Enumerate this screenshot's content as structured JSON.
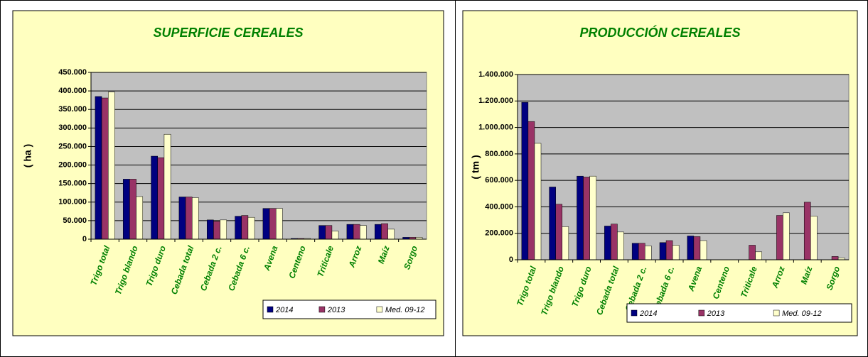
{
  "chart_data": [
    {
      "type": "bar",
      "title": "SUPERFICIE CEREALES",
      "ylabel": "( ha )",
      "categories": [
        "Trigo total",
        "Trigo blando",
        "Trigo duro",
        "Cebada total",
        "Cebada 2 c.",
        "Cebada 6 c.",
        "Avena",
        "Centeno",
        "Triticale",
        "Arroz",
        "Maíz",
        "Sorgo"
      ],
      "series": [
        {
          "name": "2014",
          "color": "#000080",
          "values": [
            385000,
            162000,
            224000,
            114000,
            52000,
            62000,
            83000,
            2000,
            37000,
            40000,
            40000,
            5000
          ]
        },
        {
          "name": "2013",
          "color": "#993366",
          "values": [
            381000,
            162000,
            220000,
            114000,
            48000,
            64000,
            83000,
            2000,
            37000,
            40000,
            42000,
            5000
          ]
        },
        {
          "name": "Med. 09-12",
          "color": "#ffffcc",
          "values": [
            397000,
            115000,
            283000,
            112000,
            52000,
            59000,
            83000,
            2000,
            22000,
            37000,
            27000,
            5000
          ]
        }
      ],
      "ylim": [
        0,
        450000
      ],
      "yticks": [
        0,
        {
          "value": 50000,
          "label": "50.000"
        },
        {
          "value": 100000,
          "label": "100.000"
        },
        {
          "value": 150000,
          "label": "150.000"
        },
        {
          "value": 200000,
          "label": "200.000"
        },
        {
          "value": 250000,
          "label": "250.000"
        },
        {
          "value": 300000,
          "label": "300.000"
        },
        {
          "value": 350000,
          "label": "350.000"
        },
        {
          "value": 400000,
          "label": "400.000"
        },
        {
          "value": 450000,
          "label": "450.000"
        }
      ],
      "grid": true,
      "legend": "bottom-right"
    },
    {
      "type": "bar",
      "title": "PRODUCCIÓN CEREALES",
      "ylabel": "( tm )",
      "categories": [
        "Trigo total",
        "Trigo blando",
        "Trigo duro",
        "Cebada total",
        "Cebada 2 c.",
        "Cebada 6 c.",
        "Avena",
        "Centeno",
        "Triticale",
        "Arroz",
        "Maíz",
        "Sorgo"
      ],
      "series": [
        {
          "name": "2014",
          "color": "#000080",
          "values": [
            1190000,
            550000,
            632000,
            255000,
            125000,
            130000,
            180000,
            0,
            0,
            0,
            0,
            0
          ]
        },
        {
          "name": "2013",
          "color": "#993366",
          "values": [
            1045000,
            420000,
            625000,
            270000,
            125000,
            145000,
            175000,
            0,
            110000,
            335000,
            435000,
            25000
          ]
        },
        {
          "name": "Med. 09-12",
          "color": "#ffffcc",
          "values": [
            880000,
            250000,
            632000,
            210000,
            105000,
            110000,
            145000,
            0,
            60000,
            355000,
            330000,
            15000
          ]
        }
      ],
      "ylim": [
        0,
        1400000
      ],
      "yticks": [
        0,
        {
          "value": 200000,
          "label": "200.000"
        },
        {
          "value": 400000,
          "label": "400.000"
        },
        {
          "value": 600000,
          "label": "600.000"
        },
        {
          "value": 800000,
          "label": "800.000"
        },
        {
          "value": 1000000,
          "label": "1.000.000"
        },
        {
          "value": 1200000,
          "label": "1.200.000"
        },
        {
          "value": 1400000,
          "label": "1.400.000"
        }
      ],
      "grid": true,
      "legend": "bottom-right"
    }
  ]
}
